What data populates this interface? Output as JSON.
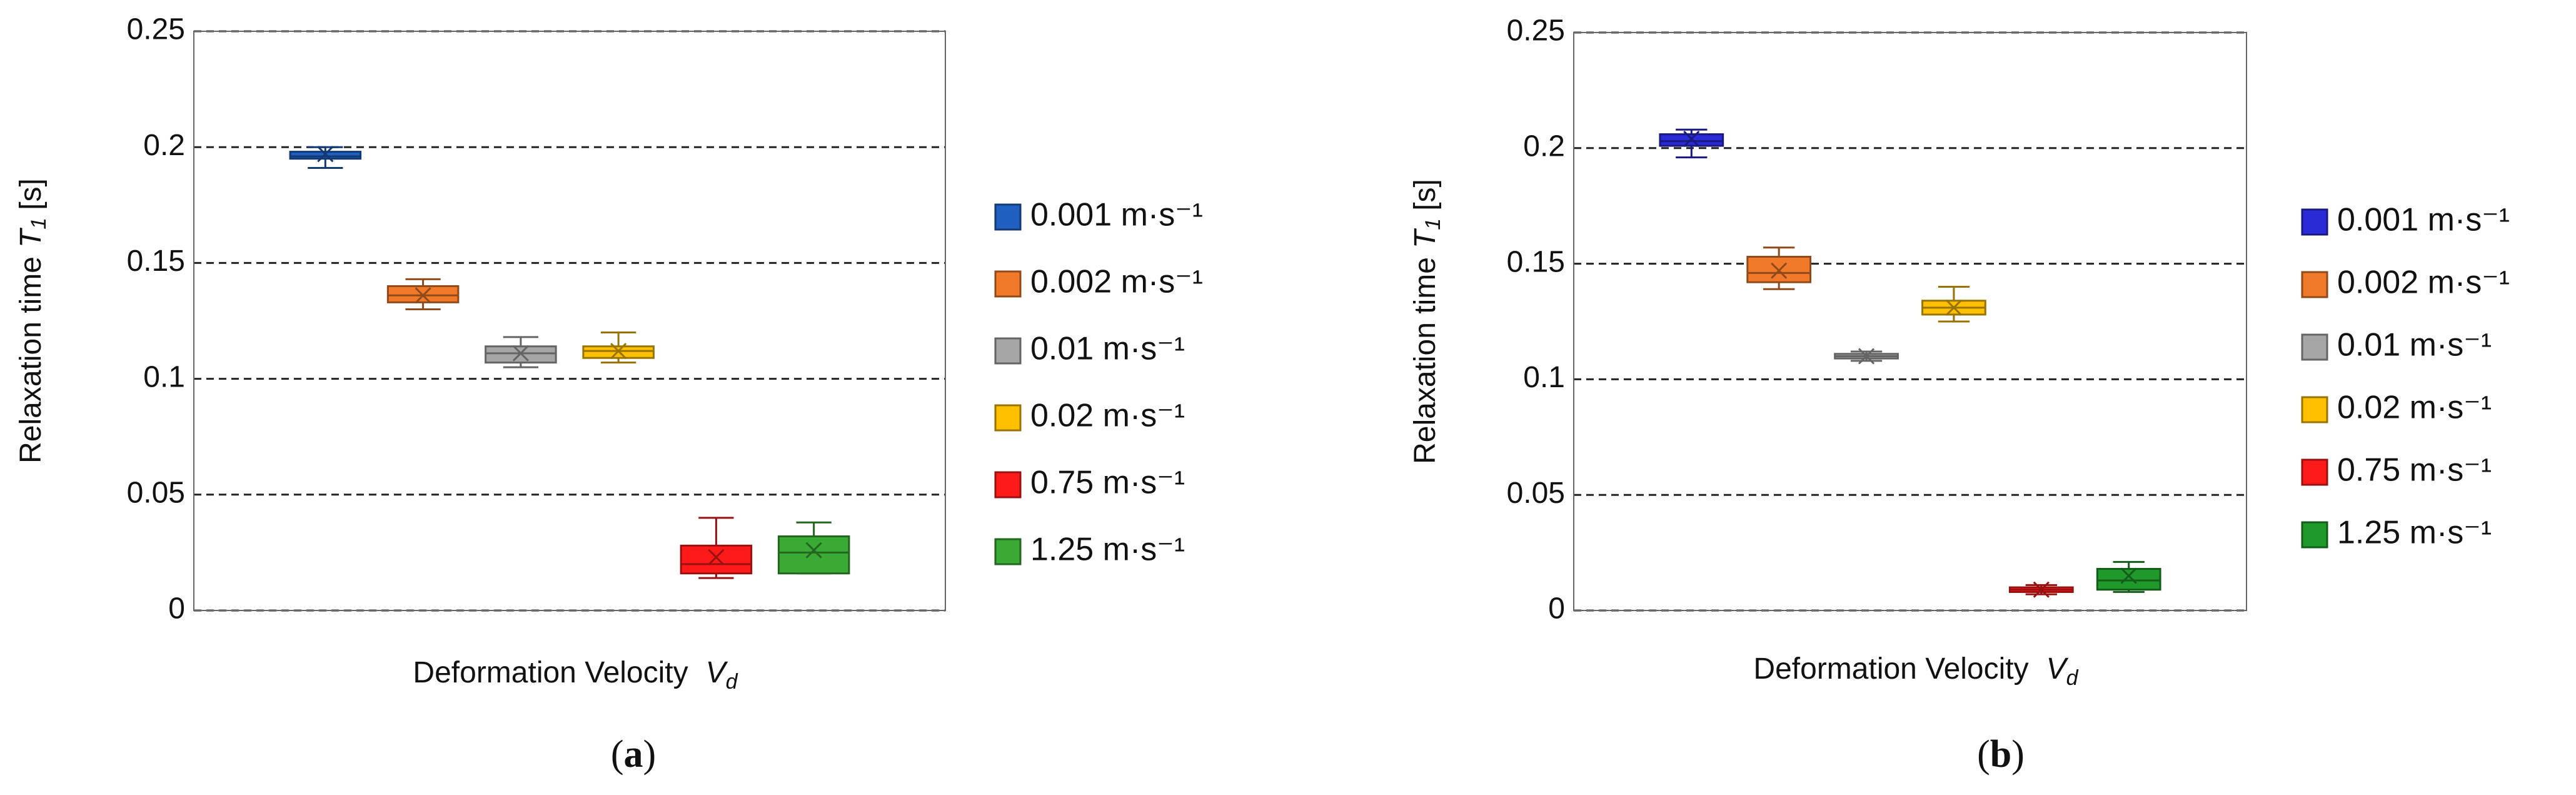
{
  "chart_data": [
    {
      "type": "box",
      "panel_label": [
        "(",
        "a",
        ")"
      ],
      "ylabel": [
        "Relaxation time",
        "T",
        "1",
        "[s]"
      ],
      "xlabel": [
        "Deformation Velocity",
        "V",
        "d"
      ],
      "ylim": [
        0,
        0.25
      ],
      "yticks": [
        0,
        0.05,
        0.1,
        0.15,
        0.2,
        0.25
      ],
      "grid": true,
      "series": [
        {
          "name": "0.001 m·s⁻¹",
          "color": "#1f5fbf",
          "min": 0.191,
          "q1": 0.195,
          "median": 0.196,
          "q3": 0.198,
          "max": 0.2,
          "mean": 0.197
        },
        {
          "name": "0.002 m·s⁻¹",
          "color": "#f07a2a",
          "min": 0.13,
          "q1": 0.133,
          "median": 0.136,
          "q3": 0.14,
          "max": 0.143,
          "mean": 0.136
        },
        {
          "name": "0.01 m·s⁻¹",
          "color": "#a6a6a6",
          "min": 0.105,
          "q1": 0.107,
          "median": 0.111,
          "q3": 0.114,
          "max": 0.118,
          "mean": 0.111
        },
        {
          "name": "0.02 m·s⁻¹",
          "color": "#ffc000",
          "min": 0.107,
          "q1": 0.109,
          "median": 0.112,
          "q3": 0.114,
          "max": 0.12,
          "mean": 0.112
        },
        {
          "name": "0.75 m·s⁻¹",
          "color": "#ff1a1a",
          "min": 0.014,
          "q1": 0.016,
          "median": 0.02,
          "q3": 0.028,
          "max": 0.04,
          "mean": 0.023
        },
        {
          "name": "1.25 m·s⁻¹",
          "color": "#3aaa35",
          "min": 0.016,
          "q1": 0.016,
          "median": 0.025,
          "q3": 0.032,
          "max": 0.038,
          "mean": 0.026
        }
      ]
    },
    {
      "type": "box",
      "panel_label": [
        "(",
        "b",
        ")"
      ],
      "ylabel": [
        "Relaxation time",
        "T",
        "1",
        "[s]"
      ],
      "xlabel": [
        "Deformation Velocity",
        "V",
        "d"
      ],
      "ylim": [
        0,
        0.25
      ],
      "yticks": [
        0,
        0.05,
        0.1,
        0.15,
        0.2,
        0.25
      ],
      "grid": true,
      "series": [
        {
          "name": "0.001 m·s⁻¹",
          "color": "#2a2ad6",
          "min": 0.196,
          "q1": 0.201,
          "median": 0.203,
          "q3": 0.206,
          "max": 0.208,
          "mean": 0.204
        },
        {
          "name": "0.002 m·s⁻¹",
          "color": "#f07a2a",
          "min": 0.139,
          "q1": 0.142,
          "median": 0.146,
          "q3": 0.153,
          "max": 0.157,
          "mean": 0.147
        },
        {
          "name": "0.01 m·s⁻¹",
          "color": "#a6a6a6",
          "min": 0.108,
          "q1": 0.109,
          "median": 0.11,
          "q3": 0.111,
          "max": 0.112,
          "mean": 0.11
        },
        {
          "name": "0.02 m·s⁻¹",
          "color": "#ffc000",
          "min": 0.125,
          "q1": 0.128,
          "median": 0.131,
          "q3": 0.134,
          "max": 0.14,
          "mean": 0.131
        },
        {
          "name": "0.75 m·s⁻¹",
          "color": "#ff1a1a",
          "min": 0.007,
          "q1": 0.008,
          "median": 0.009,
          "q3": 0.01,
          "max": 0.011,
          "mean": 0.009
        },
        {
          "name": "1.25 m·s⁻¹",
          "color": "#1f9a2a",
          "min": 0.008,
          "q1": 0.009,
          "median": 0.013,
          "q3": 0.018,
          "max": 0.021,
          "mean": 0.015
        }
      ]
    }
  ]
}
